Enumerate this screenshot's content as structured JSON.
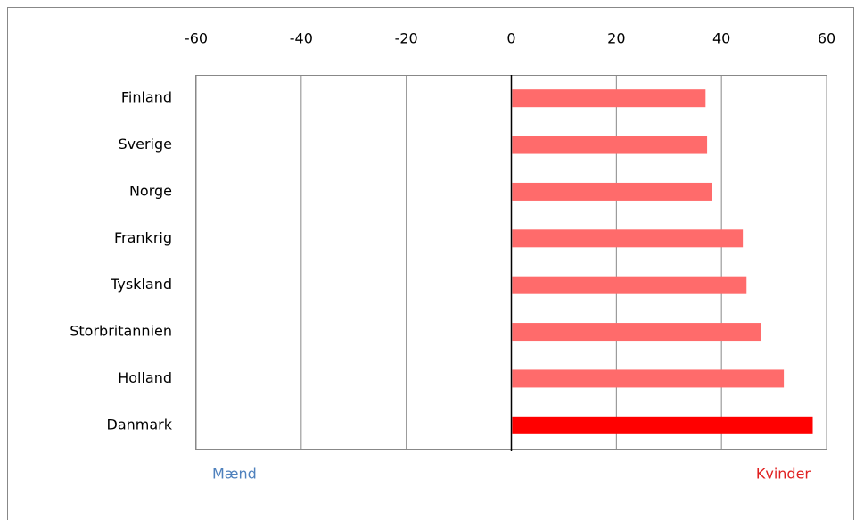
{
  "chart_data": {
    "type": "bar",
    "orientation": "horizontal",
    "categories": [
      "Finland",
      "Sverige",
      "Norge",
      "Frankrig",
      "Tyskland",
      "Storbritannien",
      "Holland",
      "Danmark"
    ],
    "values": [
      36.8,
      37.1,
      38.1,
      43.9,
      44.6,
      47.3,
      51.7,
      57.2
    ],
    "colors": [
      "#ff6b6b",
      "#ff6b6b",
      "#ff6b6b",
      "#ff6b6b",
      "#ff6b6b",
      "#ff6b6b",
      "#ff6b6b",
      "#ff0000"
    ],
    "xlim": [
      -60,
      60
    ],
    "xticks": [
      -60,
      -40,
      -20,
      0,
      20,
      40,
      60
    ],
    "grid": true,
    "annotations": [
      {
        "text": "Mænd",
        "color": "#4f81bd",
        "side": "left"
      },
      {
        "text": "Kvinder",
        "color": "#e02020",
        "side": "right"
      }
    ]
  }
}
